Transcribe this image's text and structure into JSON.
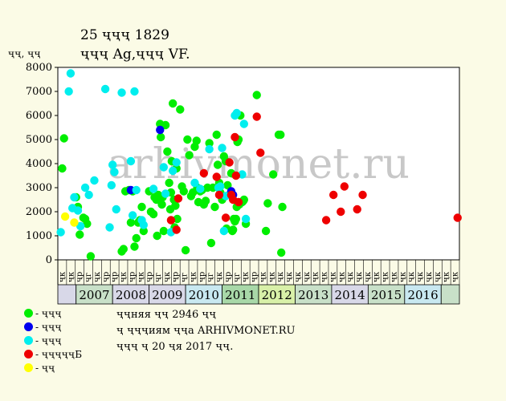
{
  "header": {
    "title_line1": "25 ҷҷҷ 1829",
    "title_line2": "ҷҷҷ Ag,ҷҷҷ VF."
  },
  "legend": [
    {
      "label": "- ҷҷҷ",
      "color": "#00ee00"
    },
    {
      "label": "- ҷҷҷ",
      "color": "#0000ee"
    },
    {
      "label": "- ҷҷҷ",
      "color": "#00eeee"
    },
    {
      "label": "- ҷҷҷҷҷБ",
      "color": "#ee0000"
    },
    {
      "label": "- ҷҷ",
      "color": "#ffff00"
    }
  ],
  "notes": [
    "ҷҷняя ҷҷ 2946 ҷҷ",
    "ҷ ҷҷҷиям ҷҷа ARHIVMONET.RU",
    "ҷҷҷ ҷ 20 ҷя 2017 ҷҷ."
  ],
  "watermark": "arhivmonet.ru",
  "chart_data": {
    "type": "scatter",
    "ylabel": "ҷҷ, ҷҷ",
    "ylim": [
      0,
      8000
    ],
    "yticks": [
      0,
      1000,
      2000,
      3000,
      4000,
      5000,
      6000,
      7000,
      8000
    ],
    "xlim": [
      2006.0,
      2017.0
    ],
    "half_labels": [
      "ҷк",
      "ҷк",
      "ҷр",
      "ҷг",
      "ҷк",
      "ҷр",
      "ҷр",
      "ҷк",
      "ҷр",
      "ҷк",
      "ҷр",
      "ҷг",
      "ҷк",
      "ҷр",
      "ҷг",
      "ҷк",
      "ҷр",
      "ҷг",
      "ҷк",
      "ҷр",
      "ҷг",
      "ҷк",
      "ҷр",
      "ҷк",
      "ҷк",
      "ҷк",
      "ҷк",
      "ҷк",
      "ҷк",
      "ҷк",
      "ҷк",
      "ҷк",
      "ҷк",
      "ҷк",
      "ҷк",
      "ҷк",
      "ҷк",
      "ҷк",
      "ҷк",
      "ҷк",
      "ҷк",
      "ҷк",
      "ҷк",
      "ҷк",
      "ҷк",
      "ҷк"
    ],
    "years": [
      {
        "label": "",
        "start": 2006.0,
        "end": 2006.5,
        "color": "#d8d8e8"
      },
      {
        "label": "2007",
        "start": 2006.5,
        "end": 2007.5,
        "color": "#c8e0c8"
      },
      {
        "label": "2008",
        "start": 2007.5,
        "end": 2008.5,
        "color": "#d8d8e8"
      },
      {
        "label": "2009",
        "start": 2008.5,
        "end": 2009.5,
        "color": "#d8d8e8"
      },
      {
        "label": "2010",
        "start": 2009.5,
        "end": 2010.5,
        "color": "#c8e8f0"
      },
      {
        "label": "2011",
        "start": 2010.5,
        "end": 2011.5,
        "color": "#a8d8a8"
      },
      {
        "label": "2012",
        "start": 2011.5,
        "end": 2012.5,
        "color": "#d8f0a8"
      },
      {
        "label": "2013",
        "start": 2012.5,
        "end": 2013.5,
        "color": "#c8e0c8"
      },
      {
        "label": "2014",
        "start": 2013.5,
        "end": 2014.5,
        "color": "#d8d8e8"
      },
      {
        "label": "2015",
        "start": 2014.5,
        "end": 2015.5,
        "color": "#c8e0c8"
      },
      {
        "label": "2016",
        "start": 2015.5,
        "end": 2016.5,
        "color": "#c8e8f0"
      },
      {
        "label": "",
        "start": 2016.5,
        "end": 2017.0,
        "color": "#c8e0c8"
      }
    ],
    "series": [
      {
        "key": "green",
        "color": "#00ee00",
        "points": [
          [
            2006.12,
            3800
          ],
          [
            2006.17,
            5050
          ],
          [
            2006.5,
            2600
          ],
          [
            2006.55,
            2200
          ],
          [
            2006.6,
            1050
          ],
          [
            2006.7,
            1750
          ],
          [
            2006.75,
            1700
          ],
          [
            2006.8,
            1500
          ],
          [
            2006.9,
            150
          ],
          [
            2007.75,
            350
          ],
          [
            2007.8,
            450
          ],
          [
            2007.85,
            2850
          ],
          [
            2007.95,
            2900
          ],
          [
            2008.0,
            1550
          ],
          [
            2008.05,
            2850
          ],
          [
            2008.1,
            550
          ],
          [
            2008.15,
            900
          ],
          [
            2008.2,
            1550
          ],
          [
            2008.25,
            1650
          ],
          [
            2008.3,
            2200
          ],
          [
            2008.35,
            1200
          ],
          [
            2008.5,
            2850
          ],
          [
            2008.55,
            2000
          ],
          [
            2008.62,
            1900
          ],
          [
            2008.65,
            2600
          ],
          [
            2008.7,
            2500
          ],
          [
            2008.72,
            1000
          ],
          [
            2008.75,
            2700
          ],
          [
            2008.8,
            5650
          ],
          [
            2008.82,
            5100
          ],
          [
            2008.85,
            2300
          ],
          [
            2008.87,
            2600
          ],
          [
            2008.9,
            1200
          ],
          [
            2008.95,
            5600
          ],
          [
            2009.0,
            4500
          ],
          [
            2009.05,
            3200
          ],
          [
            2009.08,
            2100
          ],
          [
            2009.1,
            2800
          ],
          [
            2009.12,
            4100
          ],
          [
            2009.15,
            6500
          ],
          [
            2009.18,
            2500
          ],
          [
            2009.2,
            1350
          ],
          [
            2009.22,
            2250
          ],
          [
            2009.25,
            3800
          ],
          [
            2009.27,
            1700
          ],
          [
            2009.35,
            6250
          ],
          [
            2009.4,
            3050
          ],
          [
            2009.45,
            2850
          ],
          [
            2009.5,
            400
          ],
          [
            2009.55,
            5000
          ],
          [
            2009.6,
            4350
          ],
          [
            2009.65,
            2650
          ],
          [
            2009.7,
            2800
          ],
          [
            2009.75,
            4700
          ],
          [
            2009.8,
            4950
          ],
          [
            2009.82,
            3000
          ],
          [
            2009.85,
            2400
          ],
          [
            2009.9,
            2850
          ],
          [
            2009.95,
            2900
          ],
          [
            2010.0,
            2300
          ],
          [
            2010.05,
            2450
          ],
          [
            2010.1,
            3000
          ],
          [
            2010.15,
            4850
          ],
          [
            2010.2,
            700
          ],
          [
            2010.25,
            3000
          ],
          [
            2010.3,
            2200
          ],
          [
            2010.35,
            5200
          ],
          [
            2010.38,
            3950
          ],
          [
            2010.42,
            3200
          ],
          [
            2010.45,
            2800
          ],
          [
            2010.5,
            2500
          ],
          [
            2010.55,
            4300
          ],
          [
            2010.6,
            4100
          ],
          [
            2010.62,
            1300
          ],
          [
            2010.65,
            3100
          ],
          [
            2010.7,
            2700
          ],
          [
            2010.75,
            3600
          ],
          [
            2010.78,
            1200
          ],
          [
            2010.8,
            1250
          ],
          [
            2010.82,
            1700
          ],
          [
            2010.85,
            1600
          ],
          [
            2010.88,
            1700
          ],
          [
            2010.9,
            2200
          ],
          [
            2010.92,
            4900
          ],
          [
            2010.95,
            5000
          ],
          [
            2010.97,
            2300
          ],
          [
            2011.0,
            6000
          ],
          [
            2011.05,
            2400
          ],
          [
            2011.08,
            2450
          ],
          [
            2011.1,
            2500
          ],
          [
            2011.15,
            1500
          ],
          [
            2011.45,
            6850
          ],
          [
            2011.7,
            1200
          ],
          [
            2011.75,
            2350
          ],
          [
            2011.9,
            3550
          ],
          [
            2012.05,
            5200
          ],
          [
            2012.1,
            5200
          ],
          [
            2012.12,
            300
          ],
          [
            2012.15,
            2200
          ]
        ]
      },
      {
        "key": "blue",
        "color": "#0000ee",
        "points": [
          [
            2008.0,
            2900
          ],
          [
            2008.8,
            5400
          ],
          [
            2010.75,
            2850
          ],
          [
            2010.8,
            2700
          ]
        ]
      },
      {
        "key": "cyan",
        "color": "#00eeee",
        "points": [
          [
            2006.08,
            1150
          ],
          [
            2006.3,
            7000
          ],
          [
            2006.35,
            7750
          ],
          [
            2006.4,
            2150
          ],
          [
            2006.45,
            2600
          ],
          [
            2006.55,
            2050
          ],
          [
            2006.62,
            1400
          ],
          [
            2006.75,
            3000
          ],
          [
            2006.85,
            2700
          ],
          [
            2007.0,
            3300
          ],
          [
            2007.3,
            7100
          ],
          [
            2007.42,
            1350
          ],
          [
            2007.47,
            3100
          ],
          [
            2007.5,
            3950
          ],
          [
            2007.55,
            3650
          ],
          [
            2007.6,
            2100
          ],
          [
            2007.75,
            6950
          ],
          [
            2008.0,
            4100
          ],
          [
            2008.05,
            1850
          ],
          [
            2008.1,
            7000
          ],
          [
            2008.15,
            2900
          ],
          [
            2008.3,
            1650
          ],
          [
            2008.35,
            1450
          ],
          [
            2008.62,
            2950
          ],
          [
            2008.9,
            3850
          ],
          [
            2008.95,
            2750
          ],
          [
            2009.1,
            1150
          ],
          [
            2009.15,
            3700
          ],
          [
            2009.25,
            4050
          ],
          [
            2009.75,
            3200
          ],
          [
            2009.9,
            2950
          ],
          [
            2010.15,
            4600
          ],
          [
            2010.4,
            3000
          ],
          [
            2010.45,
            3050
          ],
          [
            2010.5,
            4650
          ],
          [
            2010.55,
            1200
          ],
          [
            2010.6,
            2650
          ],
          [
            2010.85,
            6000
          ],
          [
            2010.9,
            6100
          ],
          [
            2011.05,
            3550
          ],
          [
            2011.1,
            5650
          ],
          [
            2011.15,
            1700
          ]
        ]
      },
      {
        "key": "red",
        "color": "#ee0000",
        "points": [
          [
            2009.1,
            1650
          ],
          [
            2009.25,
            1250
          ],
          [
            2009.3,
            2550
          ],
          [
            2010.0,
            3600
          ],
          [
            2010.35,
            3450
          ],
          [
            2010.42,
            2700
          ],
          [
            2010.6,
            1750
          ],
          [
            2010.7,
            4050
          ],
          [
            2010.75,
            2700
          ],
          [
            2010.8,
            2500
          ],
          [
            2010.85,
            5100
          ],
          [
            2010.88,
            3500
          ],
          [
            2010.95,
            2400
          ],
          [
            2011.45,
            5950
          ],
          [
            2011.55,
            4450
          ],
          [
            2013.35,
            1650
          ],
          [
            2013.55,
            2700
          ],
          [
            2013.75,
            2000
          ],
          [
            2013.85,
            3050
          ],
          [
            2014.2,
            2100
          ],
          [
            2014.35,
            2700
          ],
          [
            2016.95,
            1750
          ]
        ]
      },
      {
        "key": "yellow",
        "color": "#ffff00",
        "points": [
          [
            2006.2,
            1800
          ],
          [
            2006.45,
            1550
          ]
        ]
      }
    ]
  }
}
